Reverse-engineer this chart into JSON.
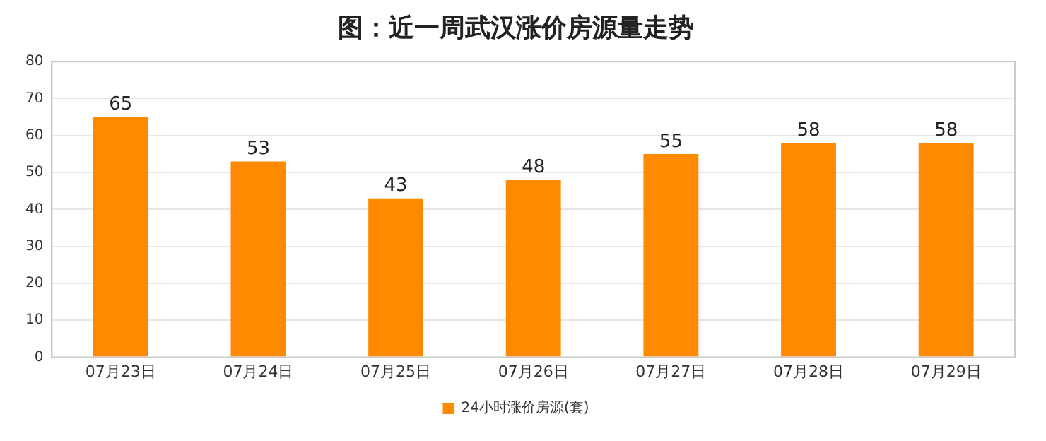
{
  "chart_data": {
    "type": "bar",
    "title": "图：近一周武汉涨价房源量走势",
    "categories": [
      "07月23日",
      "07月24日",
      "07月25日",
      "07月26日",
      "07月27日",
      "07月28日",
      "07月29日"
    ],
    "series": [
      {
        "name": "24小时涨价房源(套)",
        "color": "#ff8a00",
        "values": [
          65,
          53,
          43,
          48,
          55,
          58,
          58
        ]
      }
    ],
    "ylim": [
      0,
      80
    ],
    "yticks": [
      0,
      10,
      20,
      30,
      40,
      50,
      60,
      70,
      80
    ],
    "grid": "y",
    "legend": "bottom",
    "data_labels": true
  }
}
